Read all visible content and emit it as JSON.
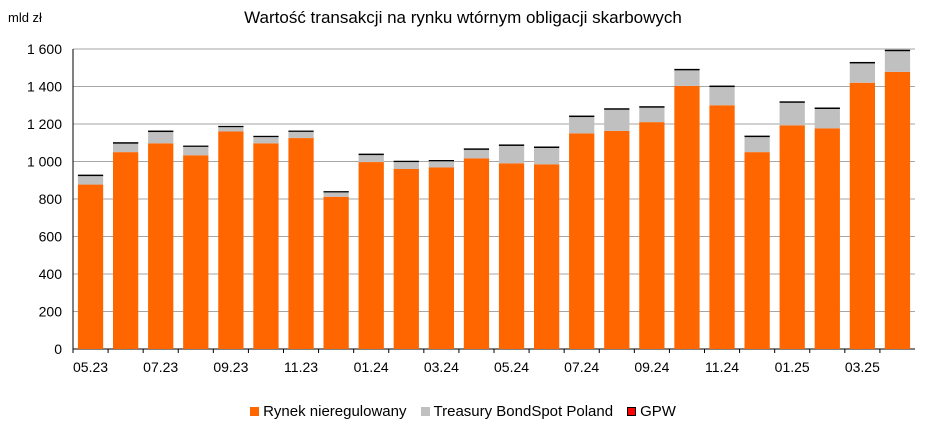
{
  "chart_data": {
    "type": "bar",
    "stacked": true,
    "title": "Wartość transakcji na rynku wtórnym obligacji skarbowych",
    "ylabel": "mld zł",
    "xlabel": "",
    "ylim": [
      0,
      1600
    ],
    "yticks": [
      0,
      200,
      400,
      600,
      800,
      1000,
      1200,
      1400,
      1600
    ],
    "ytick_labels": [
      "0",
      "200",
      "400",
      "600",
      "800",
      "1 000",
      "1 200",
      "1 400",
      "1 600"
    ],
    "categories": [
      "05.23",
      "06.23",
      "07.23",
      "08.23",
      "09.23",
      "10.23",
      "11.23",
      "12.23",
      "01.24",
      "02.24",
      "03.24",
      "04.24",
      "05.24",
      "06.24",
      "07.24",
      "08.24",
      "09.24",
      "10.24",
      "11.24",
      "12.24",
      "01.25",
      "02.25",
      "03.25",
      "04.25"
    ],
    "xtick_labels": [
      "05.23",
      "07.23",
      "09.23",
      "11.23",
      "01.24",
      "03.24",
      "05.24",
      "07.24",
      "09.24",
      "11.24",
      "01.25",
      "03.25"
    ],
    "series": [
      {
        "name": "Rynek nieregulowany",
        "color": "#ff6600",
        "values": [
          877,
          1050,
          1097,
          1033,
          1160,
          1097,
          1125,
          812,
          997,
          960,
          968,
          1017,
          990,
          985,
          1150,
          1163,
          1210,
          1403,
          1300,
          1050,
          1193,
          1177,
          1420,
          1478
        ]
      },
      {
        "name": "Treasury BondSpot Poland",
        "color": "#c0c0c0",
        "values": [
          45,
          45,
          60,
          45,
          23,
          33,
          33,
          23,
          37,
          37,
          33,
          45,
          93,
          87,
          87,
          113,
          77,
          83,
          97,
          80,
          120,
          103,
          103,
          110
        ]
      },
      {
        "name": "GPW",
        "color": "#000000",
        "values": [
          8,
          8,
          8,
          7,
          7,
          7,
          7,
          7,
          8,
          7,
          7,
          8,
          8,
          8,
          8,
          8,
          8,
          8,
          8,
          8,
          8,
          8,
          8,
          8
        ]
      }
    ],
    "legend_position": "bottom",
    "grid": true
  }
}
